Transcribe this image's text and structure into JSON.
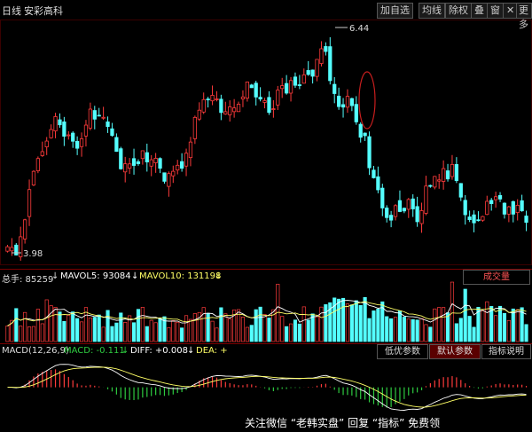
{
  "header": {
    "period": "日线",
    "stock_name": "安彩高科",
    "buttons": [
      "加自选",
      "均线",
      "除权",
      "叠",
      "窗",
      "✕",
      "更多"
    ]
  },
  "price_annotations": {
    "high": "6.44",
    "low": "3.98"
  },
  "volume_panel": {
    "total": "总手: 85259",
    "mavol5": "MAVOL5: 93084",
    "mavol10": "MAVOL10: 131198",
    "right_button": "成交量"
  },
  "macd_panel": {
    "title": "MACD(12,26,9)",
    "macd": "MACD: -0.111",
    "diff": "DIFF: +0.008",
    "dea": "DEA: +",
    "buttons": [
      "低优参数",
      "默认参数",
      "指标说明"
    ]
  },
  "watermark": "关注微信 “老韩实盘” 回复 “指标” 免费领",
  "colors": {
    "up": "#ff3b3b",
    "down": "#54ffff",
    "ma": "#ffffff",
    "green": "#2ecc40",
    "dea": "#ffff66"
  },
  "chart_data": {
    "type": "candlestick",
    "title": "安彩高科",
    "ylim": [
      3.9,
      6.6
    ],
    "n": 120,
    "anchors_close": [
      [
        0,
        4.02
      ],
      [
        3,
        4.05
      ],
      [
        8,
        5.1
      ],
      [
        14,
        5.55
      ],
      [
        19,
        5.2
      ],
      [
        24,
        5.6
      ],
      [
        28,
        5.4
      ],
      [
        33,
        4.95
      ],
      [
        39,
        5.15
      ],
      [
        45,
        4.85
      ],
      [
        50,
        5.1
      ],
      [
        56,
        5.85
      ],
      [
        62,
        5.55
      ],
      [
        68,
        5.9
      ],
      [
        74,
        5.65
      ],
      [
        80,
        5.9
      ],
      [
        86,
        6.05
      ],
      [
        90,
        6.35
      ],
      [
        92,
        5.75
      ],
      [
        98,
        5.7
      ],
      [
        104,
        4.85
      ],
      [
        108,
        4.35
      ],
      [
        112,
        4.6
      ],
      [
        116,
        4.4
      ],
      [
        120,
        4.8
      ],
      [
        126,
        4.9
      ],
      [
        132,
        4.3
      ],
      [
        138,
        4.6
      ],
      [
        147,
        4.4
      ]
    ],
    "extremes": [
      {
        "index": 2,
        "value": 3.98,
        "label": "3.98"
      },
      {
        "index": 91,
        "value": 6.44,
        "label": "6.44"
      }
    ],
    "volume": {
      "ylim": [
        0,
        260000
      ],
      "total": 85259,
      "mavol5": 93084,
      "mavol10": 131198
    },
    "macd": {
      "macd": -0.111,
      "diff": 0.008,
      "ylim": [
        -0.35,
        0.45
      ]
    }
  }
}
